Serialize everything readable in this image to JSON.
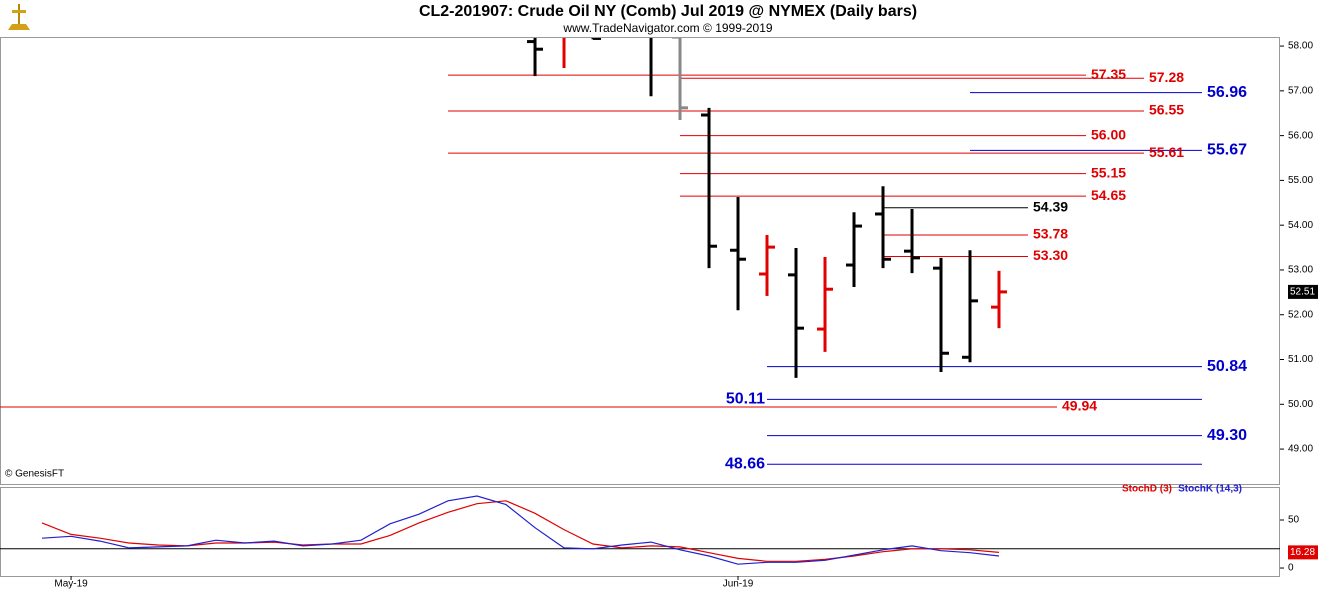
{
  "chart_data": [
    {
      "type": "ohlc",
      "title": "CL2-201907:  Crude Oil NY (Comb) Jul 2019 @ NYMEX  (Daily bars)",
      "subtitle": "www.TradeNavigator.com © 1999-2019",
      "annotation": "© GenesisFT",
      "x": [
        18,
        19,
        20,
        22,
        23,
        24,
        25,
        26,
        27,
        28,
        29,
        30,
        31,
        32,
        33,
        34
      ],
      "open": [
        58.1,
        58.45,
        58.6,
        58.5,
        58.2,
        56.46,
        53.44,
        52.91,
        52.89,
        51.68,
        53.11,
        54.25,
        53.42,
        53.04,
        51.05,
        52.17
      ],
      "high": [
        58.4,
        58.6,
        58.9,
        58.7,
        58.4,
        56.62,
        54.63,
        53.78,
        53.49,
        53.29,
        54.29,
        54.87,
        54.36,
        53.27,
        53.44,
        52.98
      ],
      "low": [
        57.33,
        57.51,
        58.15,
        56.88,
        56.35,
        53.04,
        52.1,
        52.42,
        50.59,
        51.17,
        52.62,
        53.04,
        52.93,
        50.72,
        50.94,
        51.7
      ],
      "close": [
        57.93,
        58.3,
        58.17,
        58.3,
        56.62,
        53.53,
        53.24,
        53.51,
        51.7,
        52.57,
        53.98,
        53.24,
        53.27,
        51.14,
        52.31,
        52.51
      ],
      "colors": [
        "#000000",
        "#e00000",
        "#000000",
        "#000000",
        "#888888",
        "#000000",
        "#000000",
        "#e00000",
        "#000000",
        "#e00000",
        "#000000",
        "#000000",
        "#000000",
        "#000000",
        "#000000",
        "#e00000"
      ],
      "xlim": [
        -0.45,
        43.69
      ],
      "ylim": [
        48.22,
        58.18
      ],
      "yticks": [
        {
          "value": 49,
          "label": "49.00"
        },
        {
          "value": 50,
          "label": "50.00"
        },
        {
          "value": 51,
          "label": "51.00"
        },
        {
          "value": 52,
          "label": "52.00"
        },
        {
          "value": 53,
          "label": "53.00"
        },
        {
          "value": 54,
          "label": "54.00"
        },
        {
          "value": 55,
          "label": "55.00"
        },
        {
          "value": 56,
          "label": "56.00"
        },
        {
          "value": 57,
          "label": "57.00"
        },
        {
          "value": 58,
          "label": "58.00"
        }
      ],
      "levels": [
        {
          "value": 57.35,
          "color": "#e00000",
          "x_range": [
            15,
            37
          ],
          "label_side": "right",
          "style": "minor"
        },
        {
          "value": 57.28,
          "color": "#e00000",
          "x_range": [
            23,
            39
          ],
          "label_side": "right",
          "style": "minor"
        },
        {
          "value": 56.96,
          "color": "#0000cc",
          "x_range": [
            33,
            41
          ],
          "label_side": "right",
          "style": "major"
        },
        {
          "value": 56.55,
          "color": "#e00000",
          "x_range": [
            15,
            39
          ],
          "label_side": "right",
          "style": "minor"
        },
        {
          "value": 56,
          "label": "56.00",
          "color": "#e00000",
          "x_range": [
            23,
            37
          ],
          "label_side": "right",
          "style": "minor"
        },
        {
          "value": 55.61,
          "color": "#e00000",
          "x_range": [
            15,
            39
          ],
          "label_side": "right",
          "style": "minor"
        },
        {
          "value": 55.67,
          "color": "#0000cc",
          "x_range": [
            33,
            41
          ],
          "label_side": "right",
          "style": "major"
        },
        {
          "value": 55.15,
          "color": "#e00000",
          "x_range": [
            23,
            37
          ],
          "label_side": "right",
          "style": "minor"
        },
        {
          "value": 54.65,
          "color": "#e00000",
          "x_range": [
            23,
            37
          ],
          "label_side": "right",
          "style": "minor"
        },
        {
          "value": 54.39,
          "color": "#000000",
          "x_range": [
            30,
            35
          ],
          "label_side": "right",
          "style": "minor"
        },
        {
          "value": 53.78,
          "color": "#e00000",
          "x_range": [
            30,
            35
          ],
          "label_side": "right",
          "style": "minor"
        },
        {
          "value": 53.3,
          "label": "53.30",
          "color": "#e00000",
          "x_range": [
            30,
            35
          ],
          "label_side": "right",
          "style": "minor"
        },
        {
          "value": 50.84,
          "color": "#0000cc",
          "x_range": [
            26,
            41
          ],
          "label_side": "right",
          "style": "major"
        },
        {
          "value": 50.11,
          "color": "#0000cc",
          "x_range": [
            26,
            41
          ],
          "label_side": "left",
          "style": "major"
        },
        {
          "value": 49.94,
          "color": "#e00000",
          "x_range": [
            -0.45,
            36
          ],
          "label_side": "right",
          "style": "minor"
        },
        {
          "value": 49.3,
          "label": "49.30",
          "color": "#0000cc",
          "x_range": [
            26,
            41
          ],
          "label_side": "right",
          "style": "major"
        },
        {
          "value": 48.66,
          "color": "#0000cc",
          "x_range": [
            26,
            41
          ],
          "label_side": "left",
          "style": "major"
        }
      ]
    },
    {
      "type": "line",
      "x": [
        1,
        2,
        3,
        4,
        5,
        6,
        7,
        8,
        9,
        10,
        11,
        12,
        13,
        14,
        15,
        16,
        17,
        18,
        19,
        20,
        21,
        22,
        23,
        24,
        25,
        26,
        27,
        28,
        29,
        30,
        31,
        32,
        33,
        34
      ],
      "series": [
        {
          "name": "StochD (3)",
          "color": "#e00000",
          "values": [
            47,
            35,
            31,
            26,
            24,
            23,
            26,
            26,
            27,
            24,
            25,
            25,
            34,
            47,
            58,
            67,
            70,
            57,
            40,
            25,
            21,
            23,
            22,
            16,
            10,
            7,
            7,
            9,
            12.5,
            17,
            20,
            20,
            19,
            16.28
          ]
        },
        {
          "name": "StochK (14,3)",
          "color": "#2020d0",
          "values": [
            31,
            33,
            28,
            21,
            22,
            23,
            29,
            26,
            28,
            23,
            25,
            29,
            46,
            56,
            70,
            75,
            66,
            42,
            21,
            20,
            24,
            27,
            19,
            12.5,
            4,
            6,
            6,
            8,
            13.5,
            19,
            23,
            18,
            16,
            12.5
          ]
        }
      ],
      "xlim": [
        -0.45,
        43.69
      ],
      "ylim": [
        -8.3,
        83.3
      ],
      "yticks": [
        0,
        50
      ],
      "hlines": [
        20
      ],
      "xticks": [
        {
          "value": 2,
          "label": "May-19"
        },
        {
          "value": 25,
          "label": "Jun-19"
        }
      ]
    }
  ]
}
